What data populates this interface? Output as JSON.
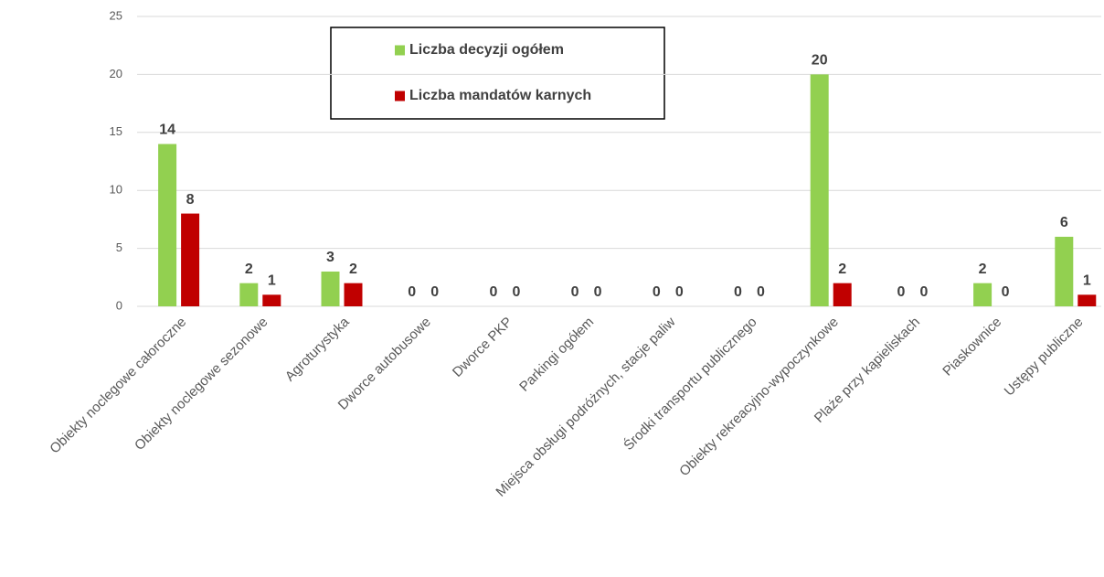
{
  "chart_data": {
    "type": "bar",
    "categories": [
      "Obiekty noclegowe całoroczne",
      "Obiekty noclegowe sezonowe",
      "Agroturystyka",
      "Dworce autobusowe",
      "Dworce PKP",
      "Parkingi ogółem",
      "Miejsca obsługi podróżnych, stacje paliw",
      "Środki transportu publicznego",
      "Obiekty rekreacyjno-wypoczynkowe",
      "Plaże przy kąpieliskach",
      "Piaskownice",
      "Ustępy publiczne"
    ],
    "series": [
      {
        "name": "Liczba decyzji ogółem",
        "color": "#92d050",
        "values": [
          14,
          2,
          3,
          0,
          0,
          0,
          0,
          0,
          20,
          0,
          2,
          6
        ]
      },
      {
        "name": "Liczba mandatów karnych",
        "color": "#c00000",
        "values": [
          8,
          1,
          2,
          0,
          0,
          0,
          0,
          0,
          2,
          0,
          0,
          1
        ]
      }
    ],
    "ylim": [
      0,
      25
    ],
    "yticks": [
      0,
      5,
      10,
      15,
      20,
      25
    ],
    "grid": true
  }
}
